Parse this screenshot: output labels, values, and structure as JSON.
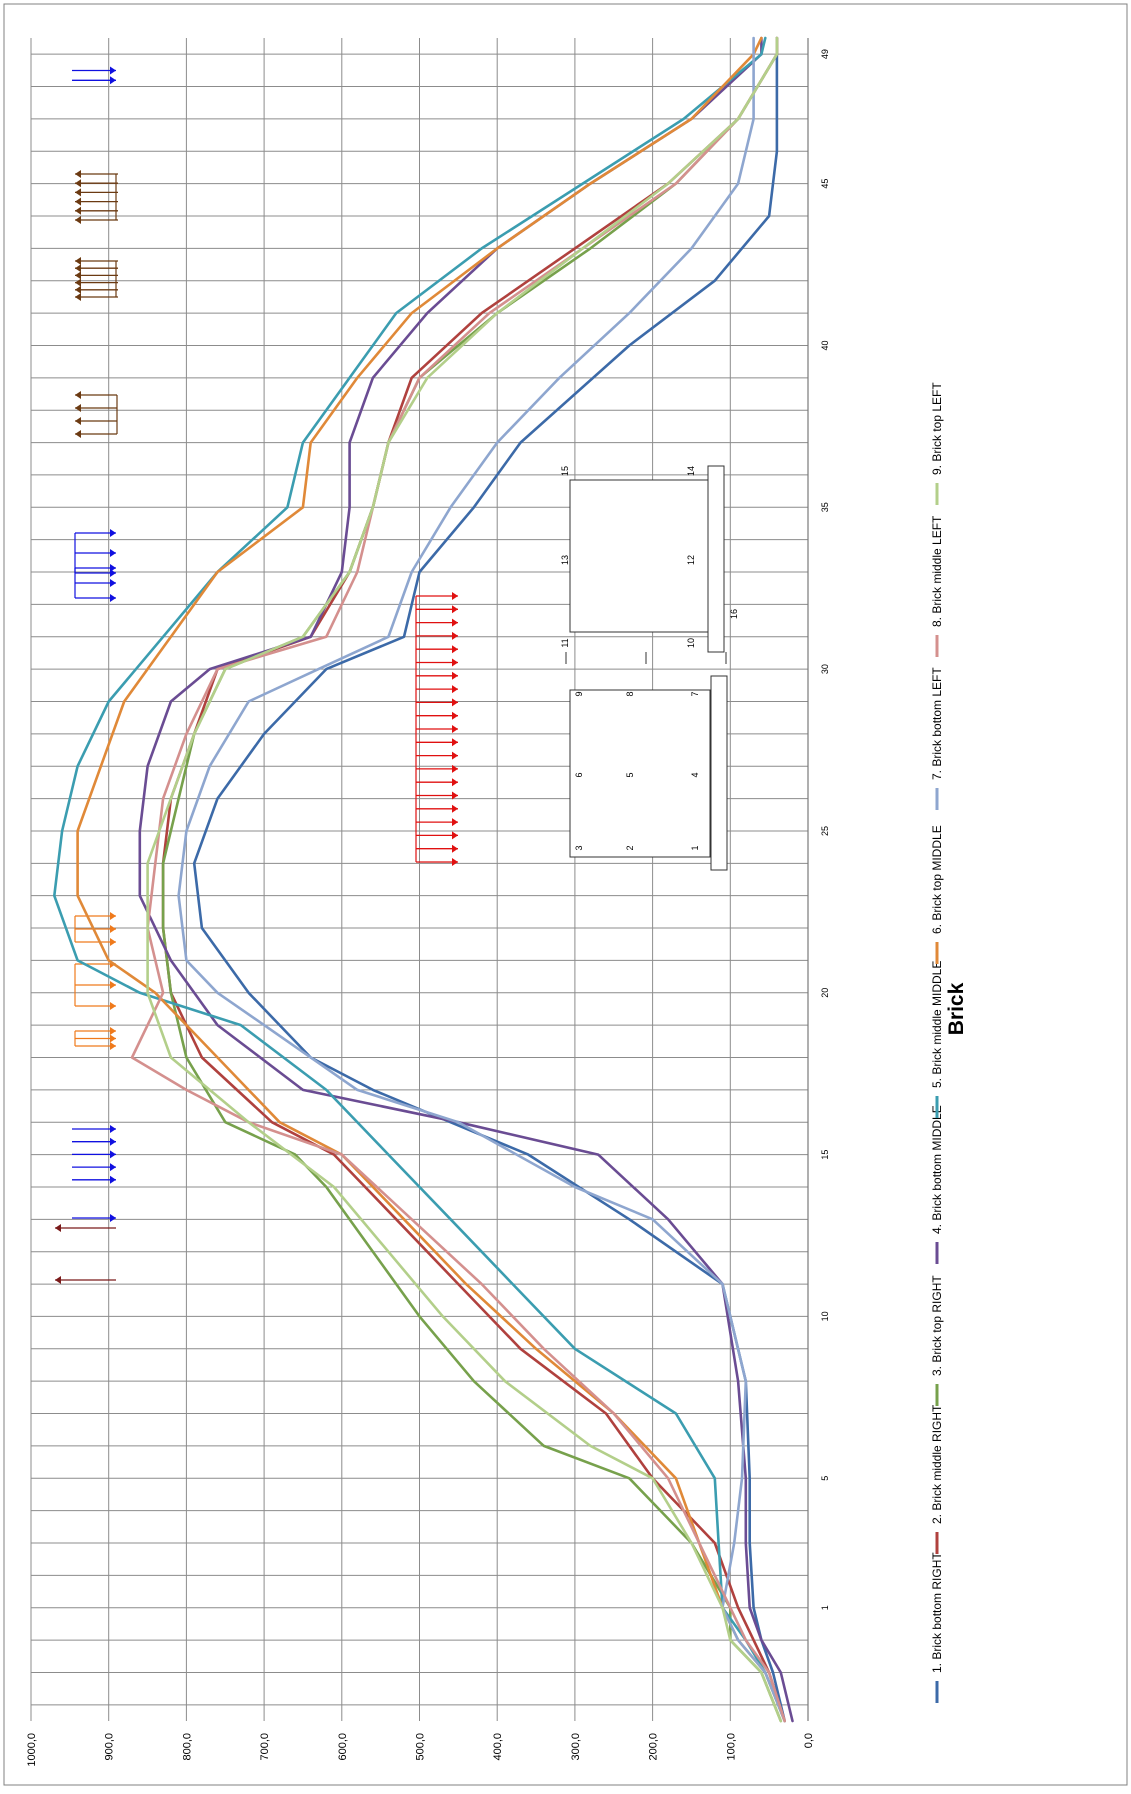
{
  "chart_data": {
    "type": "line",
    "title": "",
    "xlabel": "Brick",
    "ylabel": "",
    "orientation": "rotated-90-clockwise",
    "grid": true,
    "legend_position": "bottom",
    "ylim": [
      0,
      1000
    ],
    "ytick_labels": [
      "0,0",
      "100,0",
      "200,0",
      "300,0",
      "400,0",
      "500,0",
      "600,0",
      "700,0",
      "800,0",
      "900,0",
      "1000,0"
    ],
    "xlim": [
      -2.5,
      49.5
    ],
    "xtick_labels": [
      {
        "x": 1,
        "label": "1"
      },
      {
        "x": 5,
        "label": "5"
      },
      {
        "x": 10,
        "label": "10"
      },
      {
        "x": 15,
        "label": "15"
      },
      {
        "x": 20,
        "label": "20"
      },
      {
        "x": 25,
        "label": "25"
      },
      {
        "x": 30,
        "label": "30"
      },
      {
        "x": 35,
        "label": "35"
      },
      {
        "x": 40,
        "label": "40"
      },
      {
        "x": 45,
        "label": "45"
      },
      {
        "x": 49,
        "label": "49"
      }
    ],
    "series": [
      {
        "name": "1. Brick bottom RIGHT",
        "color": "#3c6aa8",
        "points": [
          [
            -2.5,
            30
          ],
          [
            -1,
            45
          ],
          [
            0,
            60
          ],
          [
            1,
            70
          ],
          [
            3,
            75
          ],
          [
            5,
            75
          ],
          [
            8,
            80
          ],
          [
            11,
            110
          ],
          [
            13,
            230
          ],
          [
            15,
            360
          ],
          [
            17,
            560
          ],
          [
            18,
            640
          ],
          [
            20,
            720
          ],
          [
            22,
            780
          ],
          [
            24,
            790
          ],
          [
            26,
            760
          ],
          [
            28,
            700
          ],
          [
            30,
            620
          ],
          [
            31,
            520
          ],
          [
            33,
            500
          ],
          [
            35,
            430
          ],
          [
            37,
            370
          ],
          [
            40,
            230
          ],
          [
            42,
            120
          ],
          [
            44,
            50
          ],
          [
            46,
            40
          ],
          [
            48,
            40
          ],
          [
            49.5,
            40
          ]
        ]
      },
      {
        "name": "2. Brick middle RIGHT",
        "color": "#b0413e",
        "points": [
          [
            -2.5,
            30
          ],
          [
            -1,
            50
          ],
          [
            0,
            70
          ],
          [
            1,
            90
          ],
          [
            3,
            120
          ],
          [
            4,
            160
          ],
          [
            5,
            200
          ],
          [
            7,
            260
          ],
          [
            9,
            370
          ],
          [
            11,
            450
          ],
          [
            13,
            530
          ],
          [
            15,
            610
          ],
          [
            16,
            690
          ],
          [
            18,
            780
          ],
          [
            20,
            820
          ],
          [
            22,
            830
          ],
          [
            24,
            830
          ],
          [
            26,
            820
          ],
          [
            28,
            790
          ],
          [
            30,
            760
          ],
          [
            31,
            640
          ],
          [
            33,
            590
          ],
          [
            35,
            560
          ],
          [
            37,
            540
          ],
          [
            39,
            510
          ],
          [
            41,
            420
          ],
          [
            43,
            300
          ],
          [
            45,
            180
          ],
          [
            47,
            90
          ],
          [
            49,
            40
          ],
          [
            49.5,
            40
          ]
        ]
      },
      {
        "name": "3. Brick top RIGHT",
        "color": "#77a14c",
        "points": [
          [
            -2.5,
            35
          ],
          [
            -1,
            60
          ],
          [
            0,
            100
          ],
          [
            1,
            100
          ],
          [
            3,
            150
          ],
          [
            4,
            190
          ],
          [
            5,
            230
          ],
          [
            6,
            340
          ],
          [
            8,
            430
          ],
          [
            10,
            500
          ],
          [
            12,
            560
          ],
          [
            14,
            620
          ],
          [
            15,
            660
          ],
          [
            16,
            750
          ],
          [
            18,
            800
          ],
          [
            20,
            820
          ],
          [
            22,
            830
          ],
          [
            24,
            830
          ],
          [
            26,
            810
          ],
          [
            28,
            790
          ],
          [
            30,
            750
          ],
          [
            31,
            650
          ],
          [
            33,
            590
          ],
          [
            35,
            560
          ],
          [
            37,
            540
          ],
          [
            39,
            500
          ],
          [
            41,
            400
          ],
          [
            43,
            280
          ],
          [
            45,
            170
          ],
          [
            47,
            90
          ],
          [
            49,
            40
          ],
          [
            49.5,
            40
          ]
        ]
      },
      {
        "name": "4. Brick bottom MIDDLE",
        "color": "#6a4c93",
        "points": [
          [
            -2.5,
            20
          ],
          [
            -1,
            35
          ],
          [
            0,
            60
          ],
          [
            1,
            75
          ],
          [
            3,
            80
          ],
          [
            5,
            80
          ],
          [
            8,
            90
          ],
          [
            11,
            110
          ],
          [
            13,
            180
          ],
          [
            15,
            270
          ],
          [
            16,
            450
          ],
          [
            17,
            650
          ],
          [
            19,
            760
          ],
          [
            21,
            820
          ],
          [
            23,
            860
          ],
          [
            25,
            860
          ],
          [
            27,
            850
          ],
          [
            29,
            820
          ],
          [
            30,
            770
          ],
          [
            31,
            640
          ],
          [
            33,
            600
          ],
          [
            35,
            590
          ],
          [
            37,
            590
          ],
          [
            39,
            560
          ],
          [
            41,
            490
          ],
          [
            43,
            400
          ],
          [
            45,
            280
          ],
          [
            47,
            150
          ],
          [
            49,
            60
          ],
          [
            49.5,
            60
          ]
        ]
      },
      {
        "name": "5. Brick middle MIDDLE",
        "color": "#3b9db0",
        "points": [
          [
            -2.5,
            30
          ],
          [
            -1,
            55
          ],
          [
            0,
            80
          ],
          [
            1,
            110
          ],
          [
            3,
            115
          ],
          [
            5,
            120
          ],
          [
            7,
            170
          ],
          [
            9,
            300
          ],
          [
            11,
            380
          ],
          [
            13,
            460
          ],
          [
            15,
            540
          ],
          [
            17,
            620
          ],
          [
            19,
            730
          ],
          [
            20,
            860
          ],
          [
            21,
            940
          ],
          [
            23,
            970
          ],
          [
            25,
            960
          ],
          [
            27,
            940
          ],
          [
            29,
            900
          ],
          [
            31,
            830
          ],
          [
            33,
            760
          ],
          [
            35,
            670
          ],
          [
            37,
            650
          ],
          [
            39,
            590
          ],
          [
            41,
            530
          ],
          [
            43,
            420
          ],
          [
            45,
            290
          ],
          [
            47,
            160
          ],
          [
            49,
            60
          ],
          [
            49.5,
            55
          ]
        ]
      },
      {
        "name": "6. Brick top MIDDLE",
        "color": "#e08938",
        "points": [
          [
            -2.5,
            30
          ],
          [
            -1,
            55
          ],
          [
            0,
            90
          ],
          [
            1,
            110
          ],
          [
            3,
            140
          ],
          [
            5,
            170
          ],
          [
            7,
            250
          ],
          [
            9,
            350
          ],
          [
            11,
            440
          ],
          [
            13,
            520
          ],
          [
            15,
            600
          ],
          [
            16,
            680
          ],
          [
            18,
            760
          ],
          [
            20,
            840
          ],
          [
            21,
            900
          ],
          [
            23,
            940
          ],
          [
            25,
            940
          ],
          [
            27,
            910
          ],
          [
            29,
            880
          ],
          [
            31,
            820
          ],
          [
            33,
            760
          ],
          [
            35,
            650
          ],
          [
            37,
            640
          ],
          [
            39,
            580
          ],
          [
            41,
            510
          ],
          [
            43,
            400
          ],
          [
            45,
            280
          ],
          [
            47,
            150
          ],
          [
            49,
            70
          ],
          [
            49.5,
            60
          ]
        ]
      },
      {
        "name": "7. Brick bottom LEFT",
        "color": "#8ea6cf",
        "points": [
          [
            -2.5,
            30
          ],
          [
            -1,
            55
          ],
          [
            0,
            90
          ],
          [
            1,
            110
          ],
          [
            3,
            95
          ],
          [
            5,
            85
          ],
          [
            8,
            80
          ],
          [
            11,
            110
          ],
          [
            13,
            200
          ],
          [
            14,
            300
          ],
          [
            16,
            450
          ],
          [
            17,
            580
          ],
          [
            19,
            700
          ],
          [
            20,
            760
          ],
          [
            21,
            800
          ],
          [
            23,
            810
          ],
          [
            25,
            800
          ],
          [
            27,
            770
          ],
          [
            29,
            720
          ],
          [
            30,
            630
          ],
          [
            31,
            540
          ],
          [
            33,
            510
          ],
          [
            35,
            460
          ],
          [
            37,
            400
          ],
          [
            39,
            320
          ],
          [
            41,
            230
          ],
          [
            43,
            150
          ],
          [
            45,
            90
          ],
          [
            47,
            70
          ],
          [
            49,
            70
          ],
          [
            49.5,
            70
          ]
        ]
      },
      {
        "name": "8. Brick middle LEFT",
        "color": "#d4908e",
        "points": [
          [
            -2.5,
            30
          ],
          [
            -1,
            50
          ],
          [
            0,
            80
          ],
          [
            1,
            100
          ],
          [
            3,
            140
          ],
          [
            5,
            180
          ],
          [
            7,
            250
          ],
          [
            9,
            340
          ],
          [
            11,
            420
          ],
          [
            13,
            510
          ],
          [
            15,
            600
          ],
          [
            16,
            720
          ],
          [
            17,
            800
          ],
          [
            18,
            870
          ],
          [
            20,
            830
          ],
          [
            22,
            850
          ],
          [
            24,
            840
          ],
          [
            26,
            830
          ],
          [
            28,
            800
          ],
          [
            30,
            760
          ],
          [
            31,
            620
          ],
          [
            33,
            580
          ],
          [
            35,
            560
          ],
          [
            37,
            540
          ],
          [
            39,
            500
          ],
          [
            41,
            410
          ],
          [
            43,
            290
          ],
          [
            45,
            170
          ],
          [
            47,
            90
          ],
          [
            49,
            40
          ],
          [
            49.5,
            40
          ]
        ]
      },
      {
        "name": "9. Brick top LEFT",
        "color": "#b3cf8a",
        "points": [
          [
            -2.5,
            35
          ],
          [
            -1,
            60
          ],
          [
            0,
            100
          ],
          [
            1,
            110
          ],
          [
            3,
            150
          ],
          [
            5,
            200
          ],
          [
            6,
            280
          ],
          [
            8,
            390
          ],
          [
            10,
            470
          ],
          [
            12,
            540
          ],
          [
            14,
            610
          ],
          [
            16,
            720
          ],
          [
            18,
            820
          ],
          [
            20,
            850
          ],
          [
            22,
            850
          ],
          [
            24,
            850
          ],
          [
            26,
            820
          ],
          [
            28,
            790
          ],
          [
            30,
            750
          ],
          [
            31,
            650
          ],
          [
            33,
            590
          ],
          [
            35,
            560
          ],
          [
            37,
            540
          ],
          [
            39,
            490
          ],
          [
            41,
            400
          ],
          [
            43,
            290
          ],
          [
            45,
            180
          ],
          [
            47,
            90
          ],
          [
            49,
            40
          ],
          [
            49.5,
            40
          ]
        ]
      }
    ],
    "inset": {
      "left_box_labels": [
        "3",
        "6",
        "9",
        "2",
        "5",
        "8",
        "1",
        "4",
        "7"
      ],
      "right_box_labels": [
        "11",
        "13",
        "15",
        "10",
        "12",
        "14",
        "16"
      ]
    }
  }
}
